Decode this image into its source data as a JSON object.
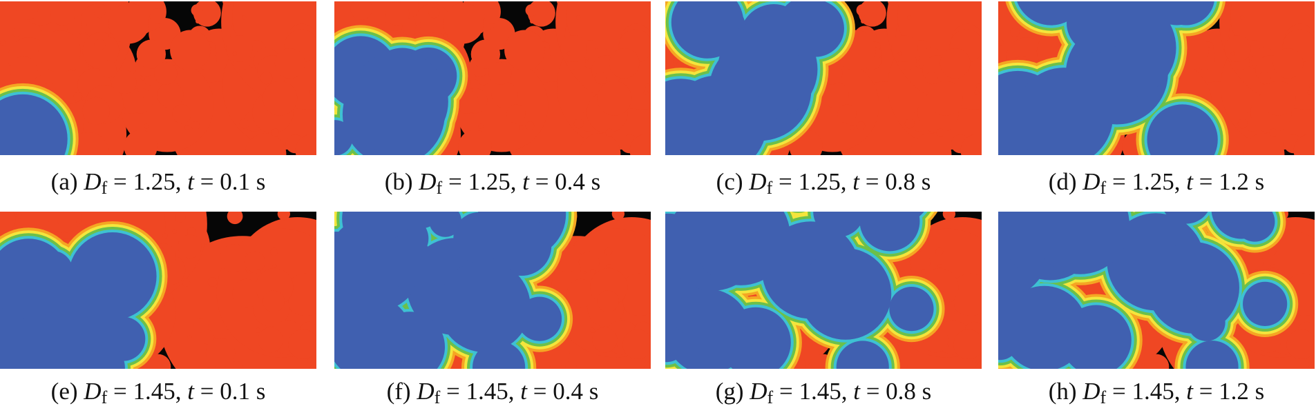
{
  "panels": [
    {
      "label": "(a)",
      "symbol": "D",
      "subscript": "f",
      "fractal": "= 1.25,",
      "time_symbol": "t",
      "time": "= 0.1 s"
    },
    {
      "label": "(b)",
      "symbol": "D",
      "subscript": "f",
      "fractal": "= 1.25,",
      "time_symbol": "t",
      "time": "= 0.4 s"
    },
    {
      "label": "(c)",
      "symbol": "D",
      "subscript": "f",
      "fractal": "= 1.25,",
      "time_symbol": "t",
      "time": "= 0.8 s"
    },
    {
      "label": "(d)",
      "symbol": "D",
      "subscript": "f",
      "fractal": "= 1.25,",
      "time_symbol": "t",
      "time": "= 1.2 s"
    },
    {
      "label": "(e)",
      "symbol": "D",
      "subscript": "f",
      "fractal": "= 1.45,",
      "time_symbol": "t",
      "time": "= 0.1 s"
    },
    {
      "label": "(f)",
      "symbol": "D",
      "subscript": "f",
      "fractal": "= 1.45,",
      "time_symbol": "t",
      "time": "= 0.4 s"
    },
    {
      "label": "(g)",
      "symbol": "D",
      "subscript": "f",
      "fractal": "= 1.45,",
      "time_symbol": "t",
      "time": "= 0.8 s"
    },
    {
      "label": "(h)",
      "symbol": "D",
      "subscript": "f",
      "fractal": "= 1.45,",
      "time_symbol": "t",
      "time": "= 1.2 s"
    }
  ]
}
